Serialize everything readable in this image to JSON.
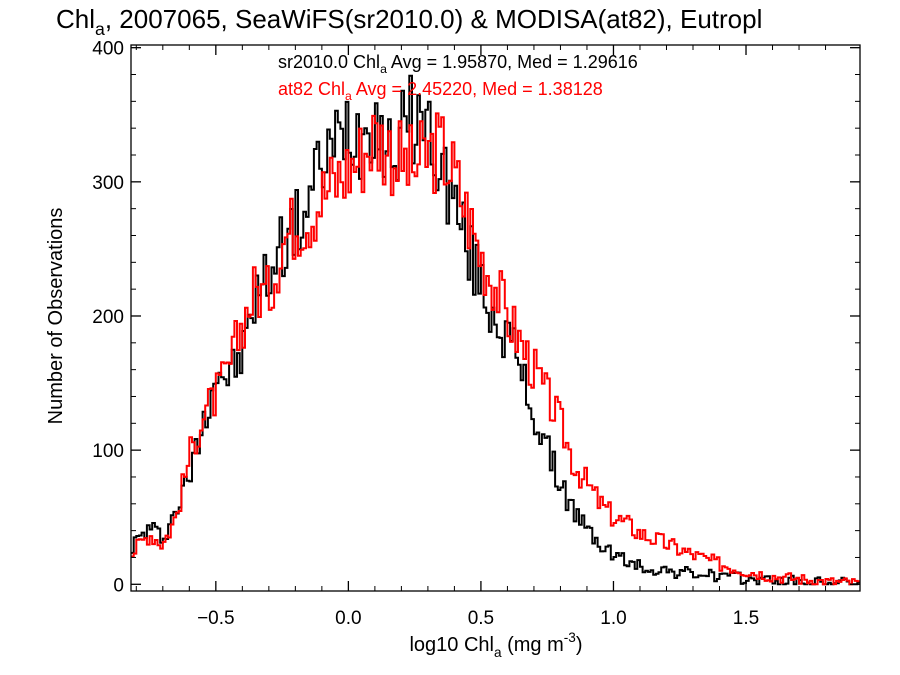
{
  "chart_data": {
    "type": "line",
    "title": {
      "main": "Chl",
      "sub": "a",
      "rest": ", 2007065, SeaWiFS(sr2010.0) & MODISA(at82), Eutropl"
    },
    "xlabel": {
      "main": "log10 Chl",
      "sub": "a",
      "rest": " (mg m",
      "sup": "-3",
      "end": ")"
    },
    "ylabel": "Number of Observations",
    "xlim": [
      -0.82,
      1.93
    ],
    "ylim": [
      -5,
      402
    ],
    "xticks": [
      -0.5,
      0.0,
      0.5,
      1.0,
      1.5
    ],
    "xtick_labels": [
      "−0.5",
      "0.0",
      "0.5",
      "1.0",
      "1.5"
    ],
    "yticks": [
      0,
      100,
      200,
      300,
      400
    ],
    "ytick_labels": [
      "0",
      "100",
      "200",
      "300",
      "400"
    ],
    "grid": false,
    "annotations": [
      {
        "pre": "sr2010.0 Chl",
        "sub": "a",
        "post": " Avg = 1.95870, Med = 1.29616",
        "color": "#000000"
      },
      {
        "pre": "at82 Chl",
        "sub": "a",
        "post": " Avg = 2.45220, Med = 1.38128",
        "color": "#ff0000"
      }
    ],
    "series": [
      {
        "color": "#000000",
        "x": [
          -0.82,
          -0.75,
          -0.7,
          -0.65,
          -0.6,
          -0.55,
          -0.5,
          -0.45,
          -0.4,
          -0.35,
          -0.3,
          -0.25,
          -0.2,
          -0.15,
          -0.1,
          -0.05,
          0.0,
          0.05,
          0.1,
          0.15,
          0.2,
          0.25,
          0.3,
          0.35,
          0.4,
          0.45,
          0.5,
          0.55,
          0.6,
          0.65,
          0.7,
          0.75,
          0.8,
          0.85,
          0.9,
          0.95,
          1.0,
          1.05,
          1.1,
          1.2,
          1.3,
          1.4,
          1.5,
          1.6,
          1.7,
          1.8,
          1.93
        ],
        "y": [
          28,
          42,
          35,
          55,
          80,
          120,
          160,
          155,
          170,
          215,
          230,
          255,
          265,
          285,
          315,
          325,
          345,
          335,
          355,
          320,
          335,
          350,
          340,
          310,
          285,
          250,
          225,
          200,
          185,
          160,
          125,
          100,
          75,
          55,
          40,
          30,
          22,
          17,
          13,
          10,
          8,
          6,
          4,
          3,
          2,
          1,
          1
        ]
      },
      {
        "color": "#ff0000",
        "x": [
          -0.82,
          -0.75,
          -0.7,
          -0.65,
          -0.6,
          -0.55,
          -0.5,
          -0.45,
          -0.4,
          -0.35,
          -0.3,
          -0.25,
          -0.2,
          -0.15,
          -0.1,
          -0.05,
          0.0,
          0.05,
          0.1,
          0.15,
          0.2,
          0.25,
          0.3,
          0.35,
          0.4,
          0.45,
          0.5,
          0.55,
          0.6,
          0.65,
          0.7,
          0.75,
          0.8,
          0.85,
          0.9,
          0.95,
          1.0,
          1.05,
          1.1,
          1.2,
          1.3,
          1.4,
          1.5,
          1.6,
          1.7,
          1.8,
          1.93
        ],
        "y": [
          22,
          38,
          30,
          50,
          95,
          125,
          140,
          160,
          195,
          220,
          215,
          255,
          270,
          275,
          290,
          300,
          310,
          320,
          335,
          325,
          315,
          310,
          320,
          325,
          305,
          275,
          245,
          225,
          200,
          180,
          160,
          140,
          120,
          90,
          75,
          60,
          50,
          45,
          38,
          30,
          22,
          15,
          10,
          6,
          4,
          2,
          1
        ]
      }
    ]
  }
}
